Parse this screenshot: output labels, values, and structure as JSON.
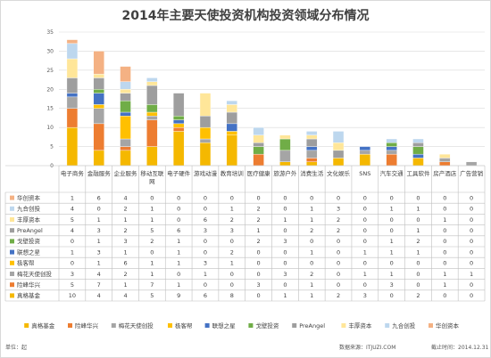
{
  "title": "2014年主要天使投资机构投资领域分布情况",
  "footer": {
    "unit": "单位：起",
    "source": "数据来源：ITJUZI.COM",
    "deadline": "截止时间：2014.12.31"
  },
  "chart_data": {
    "type": "bar",
    "stacked": true,
    "title": "2014年主要天使投资机构投资领域分布情况",
    "ylim": [
      0,
      35
    ],
    "yticks": [
      0,
      5,
      10,
      15,
      20,
      25,
      30,
      35
    ],
    "grid": true,
    "legend_position": "bottom",
    "categories": [
      "电子商务",
      "金融服务",
      "企业服务",
      "移动互联网",
      "电子硬件",
      "游戏动漫",
      "教育培训",
      "医疗健康",
      "旅游户外",
      "消费生活",
      "文化娱乐",
      "SNS",
      "汽车交通",
      "工具软件",
      "房产酒店",
      "广告营销"
    ],
    "series": [
      {
        "name": "真格基金",
        "color": "#f5b800",
        "values": [
          10,
          4,
          4,
          5,
          9,
          6,
          8,
          0,
          1,
          1,
          2,
          3,
          0,
          2,
          0,
          0
        ]
      },
      {
        "name": "险峰华兴",
        "color": "#ed7d31",
        "values": [
          5,
          7,
          1,
          7,
          1,
          0,
          0,
          3,
          0,
          1,
          0,
          0,
          3,
          0,
          1,
          0
        ]
      },
      {
        "name": "梅花天使创投",
        "color": "#a5a5a5",
        "values": [
          3,
          4,
          2,
          1,
          0,
          1,
          0,
          0,
          3,
          2,
          0,
          1,
          1,
          0,
          1,
          1
        ]
      },
      {
        "name": "极客帮",
        "color": "#ffc000",
        "values": [
          0,
          1,
          6,
          1,
          1,
          3,
          1,
          0,
          0,
          0,
          0,
          0,
          0,
          0,
          0,
          0
        ]
      },
      {
        "name": "联想之星",
        "color": "#4472c4",
        "values": [
          1,
          3,
          1,
          0,
          1,
          0,
          2,
          0,
          0,
          1,
          0,
          1,
          1,
          1,
          0,
          0
        ]
      },
      {
        "name": "戈壁投资",
        "color": "#70ad47",
        "values": [
          0,
          1,
          3,
          2,
          1,
          0,
          0,
          2,
          3,
          0,
          0,
          0,
          1,
          2,
          0,
          0
        ]
      },
      {
        "name": "PreAngel",
        "color": "#9e9e9e",
        "values": [
          4,
          3,
          2,
          5,
          6,
          3,
          3,
          1,
          0,
          2,
          2,
          0,
          0,
          1,
          0,
          0
        ]
      },
      {
        "name": "丰厚资本",
        "color": "#ffe699",
        "values": [
          5,
          1,
          1,
          1,
          0,
          6,
          2,
          2,
          1,
          1,
          2,
          0,
          0,
          0,
          1,
          0
        ]
      },
      {
        "name": "九合创投",
        "color": "#bdd7ee",
        "values": [
          4,
          0,
          2,
          1,
          0,
          0,
          1,
          2,
          0,
          1,
          3,
          0,
          1,
          1,
          0,
          0
        ]
      },
      {
        "name": "华创资本",
        "color": "#f4b183",
        "values": [
          1,
          6,
          4,
          0,
          0,
          0,
          0,
          0,
          0,
          0,
          0,
          0,
          0,
          0,
          0,
          0
        ]
      }
    ],
    "table_rows": [
      "华创资本",
      "九合创投",
      "丰厚资本",
      "PreAngel",
      "戈壁投资",
      "联想之星",
      "极客帮",
      "梅花天使创投",
      "险峰华兴",
      "真格基金"
    ]
  }
}
